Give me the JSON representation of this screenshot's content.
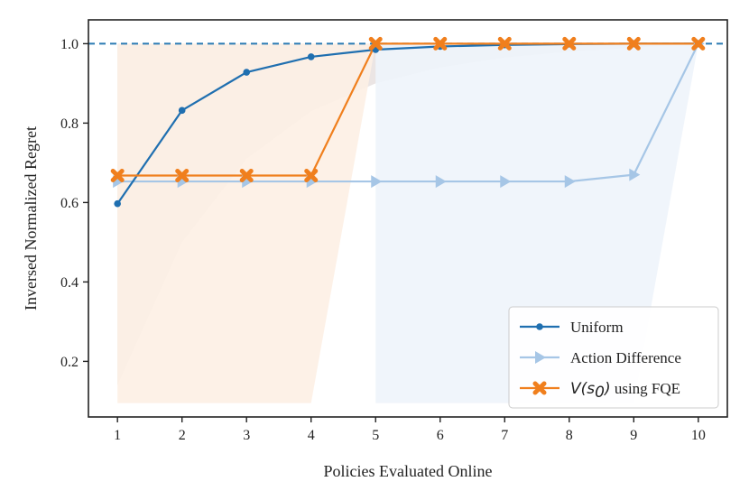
{
  "chart_data": {
    "type": "line",
    "xlabel": "Policies Evaluated Online",
    "ylabel": "Inversed Normalized Regret",
    "xlim": [
      0.55,
      10.45
    ],
    "ylim": [
      0.06,
      1.06
    ],
    "x": [
      1,
      2,
      3,
      4,
      5,
      6,
      7,
      8,
      9,
      10
    ],
    "x_ticks": [
      "1",
      "2",
      "3",
      "4",
      "5",
      "6",
      "7",
      "8",
      "9",
      "10"
    ],
    "y_ticks": [
      {
        "value": 0.2,
        "label": "0.2"
      },
      {
        "value": 0.4,
        "label": "0.4"
      },
      {
        "value": 0.6,
        "label": "0.6"
      },
      {
        "value": 0.8,
        "label": "0.8"
      },
      {
        "value": 1.0,
        "label": "1.0"
      }
    ],
    "reference_line": {
      "y": 1.0,
      "style": "dashed",
      "color": "#2b7bb4"
    },
    "grid": false,
    "legend_position": "bottom-right",
    "series": [
      {
        "name": "Uniform",
        "color": "#1f6fb0",
        "marker": "circle",
        "values": [
          0.597,
          0.832,
          0.928,
          0.967,
          0.985,
          0.993,
          0.997,
          0.999,
          1.0,
          1.0
        ],
        "band_lower": [
          0.14,
          0.5,
          0.71,
          0.83,
          0.9,
          0.94,
          0.965,
          0.98,
          0.99,
          1.0
        ],
        "band_upper": [
          1.0,
          1.0,
          1.0,
          1.0,
          1.0,
          1.0,
          1.0,
          1.0,
          1.0,
          1.0
        ],
        "band_color": "#e8e1df"
      },
      {
        "name": "Action Difference",
        "color": "#a6c6e6",
        "marker": "triangle-right",
        "values": [
          0.653,
          0.653,
          0.653,
          0.653,
          0.653,
          0.653,
          0.653,
          0.653,
          0.67,
          1.0
        ],
        "band_lower": [
          0.095,
          0.095,
          0.095,
          0.095,
          0.095,
          0.095,
          0.095,
          0.095,
          0.095,
          1.0
        ],
        "band_upper": [
          1.0,
          1.0,
          1.0,
          1.0,
          1.0,
          1.0,
          1.0,
          1.0,
          1.0,
          1.0
        ],
        "band_color": "#eef4fb",
        "band_start": 5
      },
      {
        "name": "V(s0) using FQE",
        "legend_label": {
          "pre": "V(s",
          "sub": "0",
          "post": ")",
          "rest": " using FQE"
        },
        "color": "#f07f1d",
        "marker": "x",
        "values": [
          0.668,
          0.668,
          0.668,
          0.668,
          1.0,
          1.0,
          1.0,
          1.0,
          1.0,
          1.0
        ],
        "band_lower": [
          0.095,
          0.095,
          0.095,
          0.095,
          1.0,
          1.0,
          1.0,
          1.0,
          1.0,
          1.0
        ],
        "band_upper": [
          1.0,
          1.0,
          1.0,
          1.0,
          1.0,
          1.0,
          1.0,
          1.0,
          1.0,
          1.0
        ],
        "band_color": "#fdf0e4"
      }
    ]
  }
}
